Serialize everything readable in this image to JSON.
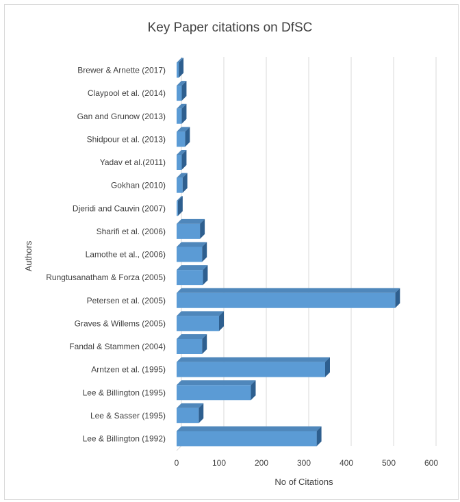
{
  "chart_data": {
    "type": "bar",
    "orientation": "horizontal",
    "title": "Key Paper citations on DfSC",
    "xlabel": "No of Citations",
    "ylabel": "Authors",
    "xlim": [
      0,
      600
    ],
    "xticks": [
      0,
      100,
      200,
      300,
      400,
      500,
      600
    ],
    "grid": true,
    "categories": [
      "Brewer &  Arnette (2017)",
      "Claypool et al. (2014)",
      "Gan and Grunow (2013)",
      "Shidpour et al. (2013)",
      "Yadav et al.(2011)",
      "Gokhan (2010)",
      "Djeridi and Cauvin (2007)",
      "Sharifi et al. (2006)",
      "Lamothe et al., (2006)",
      "Rungtusanatham & Forza (2005)",
      "Petersen et al. (2005)",
      "Graves & Willems (2005)",
      "Fandal & Stammen (2004)",
      "Arntzen et al. (1995)",
      "Lee & Billington (1995)",
      "Lee & Sasser (1995)",
      "Lee & Billington (1992)"
    ],
    "values": [
      5,
      12,
      12,
      20,
      12,
      14,
      3,
      55,
      60,
      62,
      515,
      100,
      60,
      350,
      175,
      52,
      330
    ],
    "colors": {
      "bar_front": "#5b9bd5",
      "bar_top": "#4f87bb",
      "bar_side": "#2e5f8f",
      "grid": "#d9d9d9",
      "text": "#404040"
    }
  }
}
